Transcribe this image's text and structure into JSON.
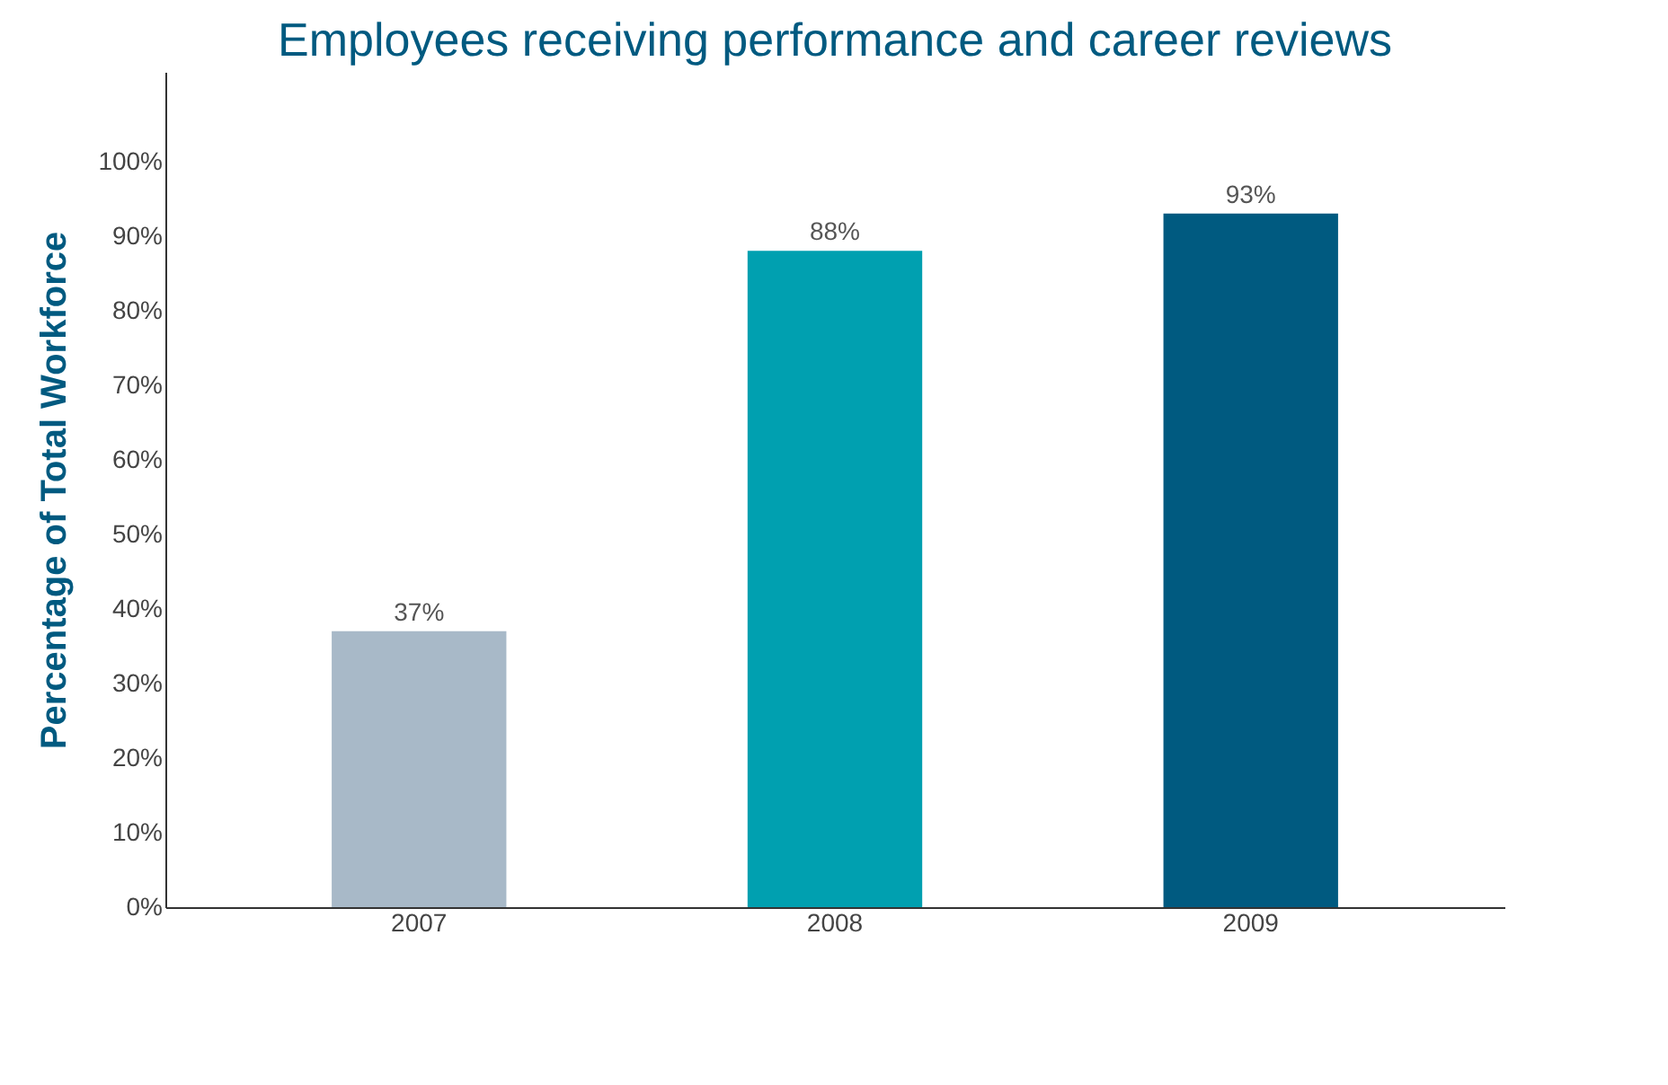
{
  "chart_data": {
    "type": "bar",
    "title": "Employees receiving  performance and career  reviews",
    "ylabel": "Percentage of Total Workforce",
    "categories": [
      "2007",
      "2008",
      "2009"
    ],
    "values": [
      37,
      88,
      93
    ],
    "colors": [
      "#a8b9c8",
      "#00a0b0",
      "#005a80"
    ],
    "value_labels": [
      "37%",
      "88%",
      "93%"
    ],
    "ylim": [
      0,
      112
    ],
    "yticks": [
      {
        "value": 0,
        "label": "0%"
      },
      {
        "value": 10,
        "label": "10%"
      },
      {
        "value": 20,
        "label": "20%"
      },
      {
        "value": 30,
        "label": "30%"
      },
      {
        "value": 40,
        "label": "40%"
      },
      {
        "value": 50,
        "label": "50%"
      },
      {
        "value": 60,
        "label": "60%"
      },
      {
        "value": 70,
        "label": "70%"
      },
      {
        "value": 80,
        "label": "80%"
      },
      {
        "value": 90,
        "label": "90%"
      },
      {
        "value": 100,
        "label": "100%"
      }
    ],
    "grid": false
  }
}
